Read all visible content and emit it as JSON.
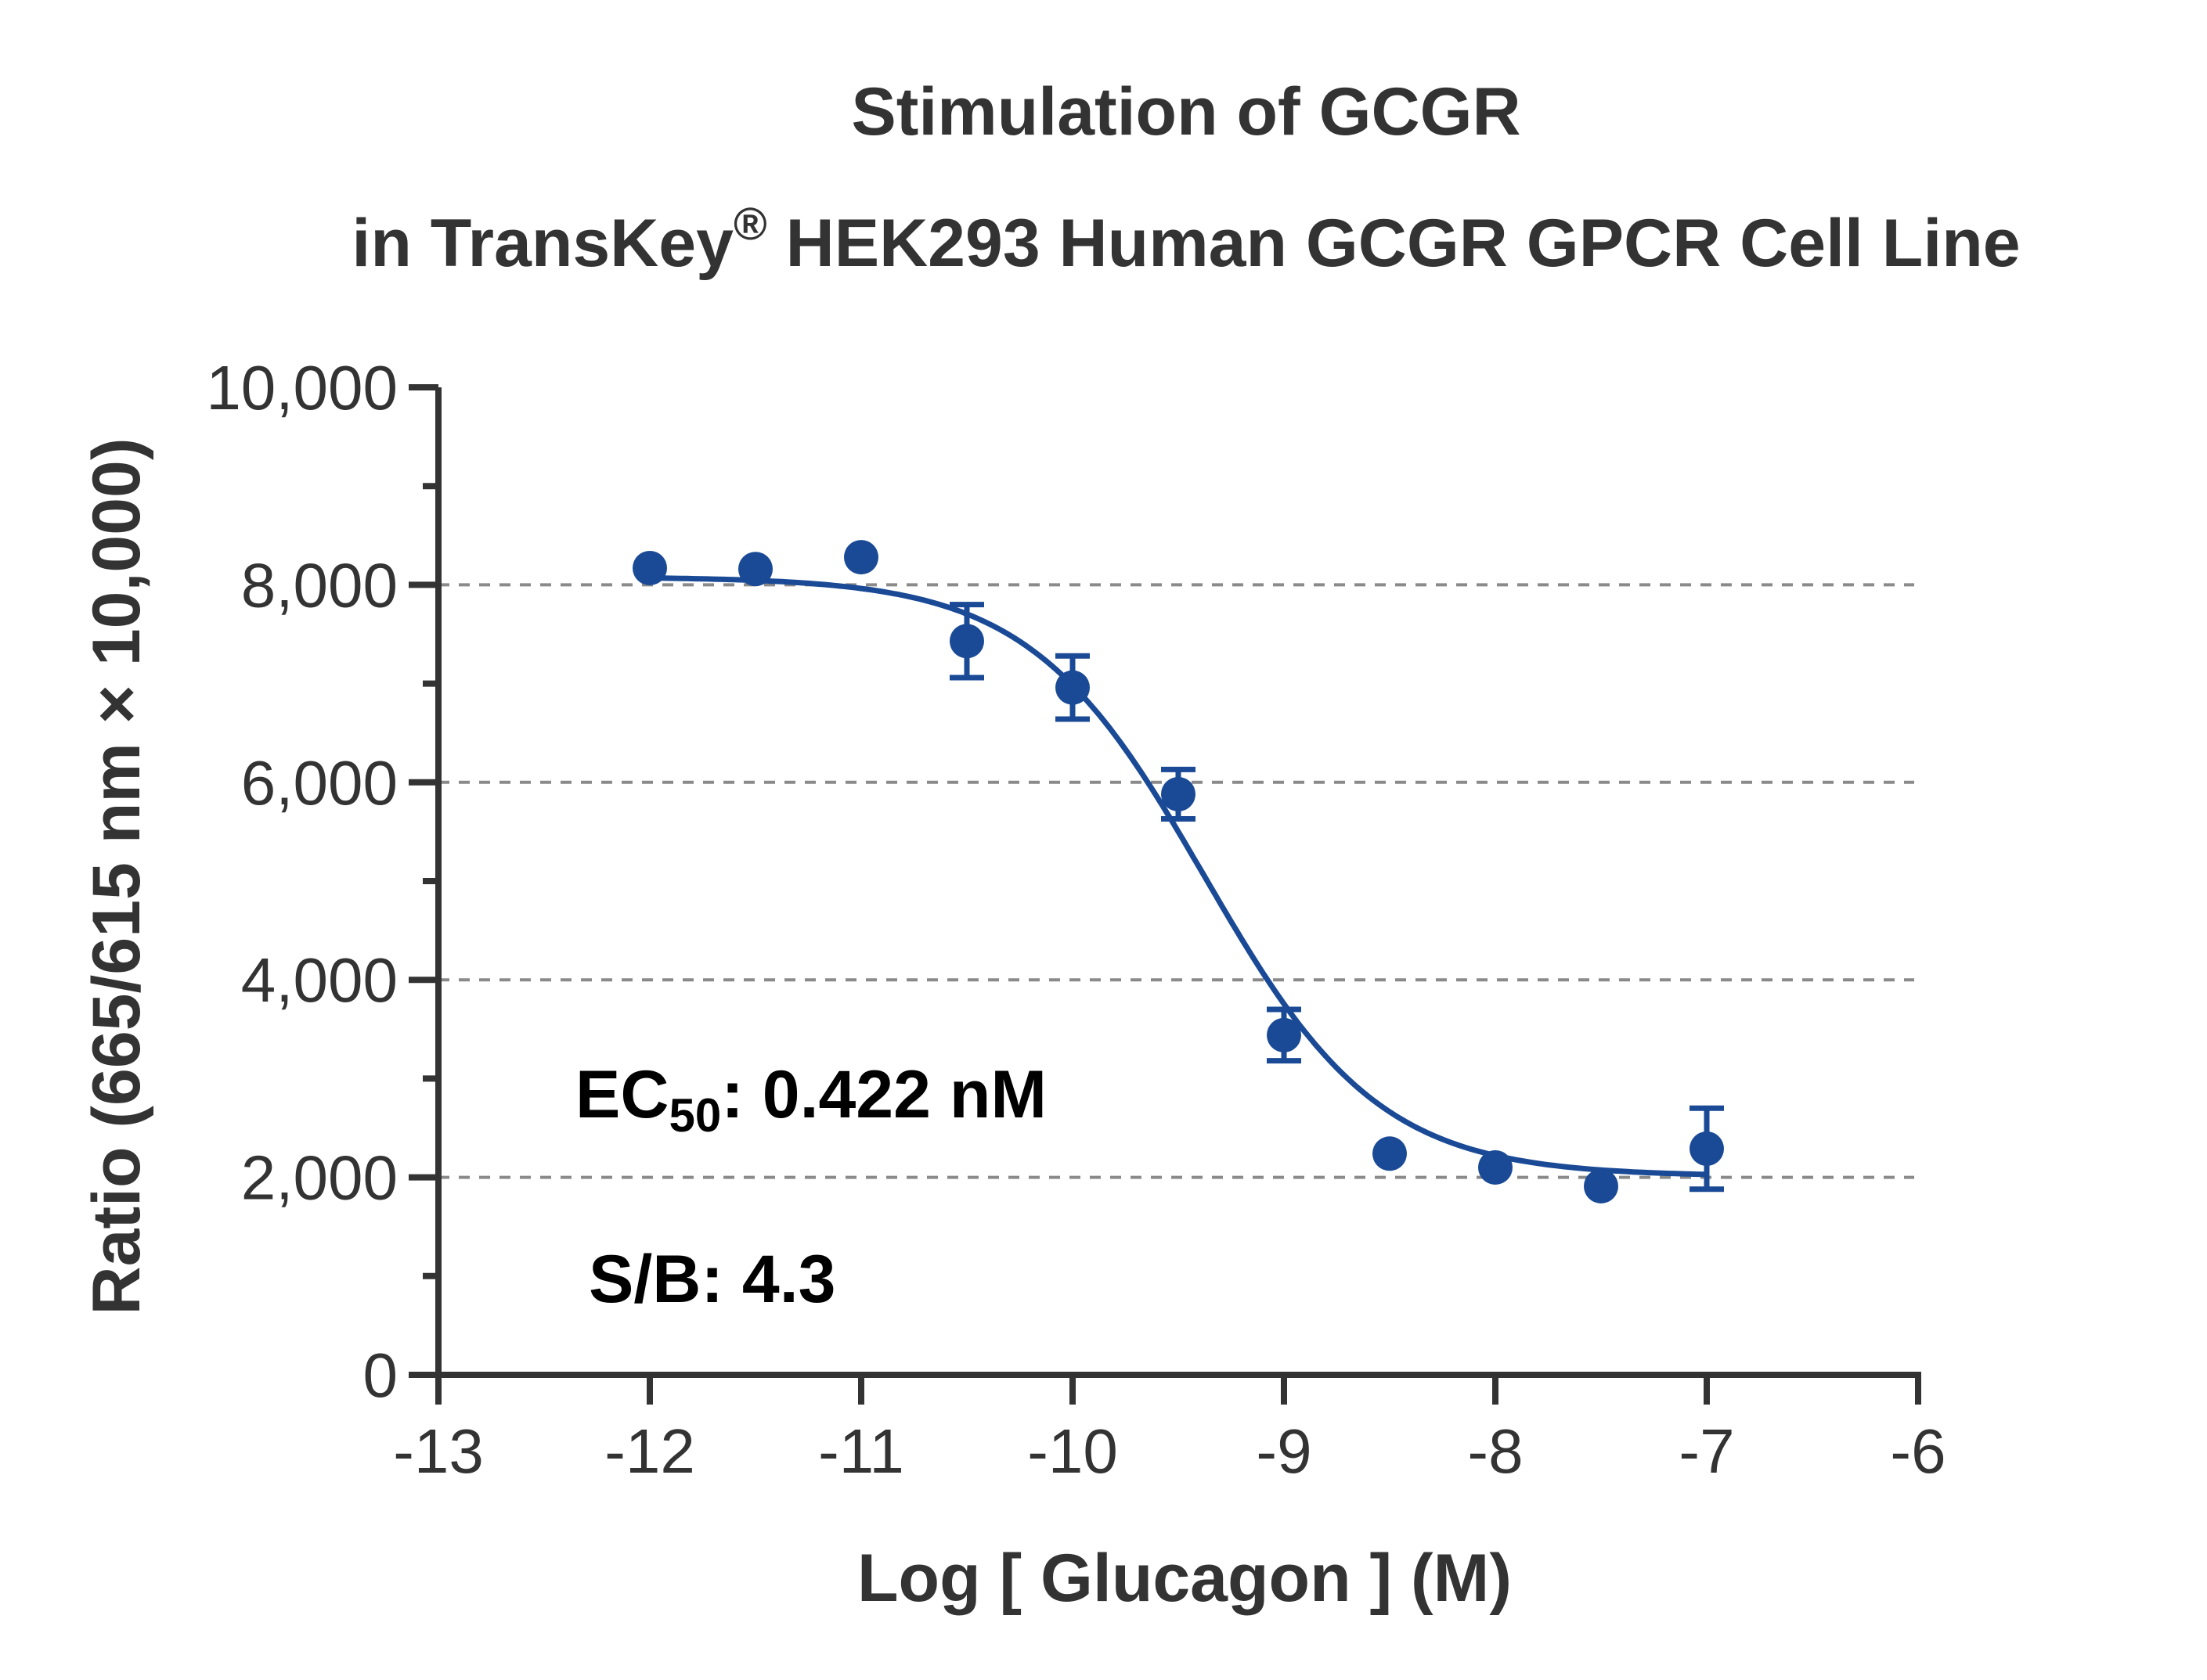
{
  "chart_data": {
    "type": "scatter",
    "title_line1": "Stimulation of  GCGR",
    "title_line2_prefix": "in TransKey",
    "title_line2_reg": "®",
    "title_line2_suffix": " HEK293 Human GCGR GPCR Cell Line",
    "xlabel": "Log [ Glucagon ]  (M)",
    "ylabel": "Ratio (665/615 nm × 10,000)",
    "xlim": [
      -13,
      -6
    ],
    "ylim": [
      0,
      10000
    ],
    "x_ticks": [
      -13,
      -12,
      -11,
      -10,
      -9,
      -8,
      -7,
      -6
    ],
    "x_tick_labels": [
      "-13",
      "-12",
      "-11",
      "-10",
      "-9",
      "-8",
      "-7",
      "-6"
    ],
    "y_ticks": [
      0,
      2000,
      4000,
      6000,
      8000,
      10000
    ],
    "y_tick_labels": [
      "0",
      "2,000",
      "4,000",
      "6,000",
      "8,000",
      "10,000"
    ],
    "y_gridlines": [
      2000,
      4000,
      6000,
      8000
    ],
    "grid": "horizontal dashed",
    "series": [
      {
        "x": [
          -12,
          -11.5,
          -11,
          -10.5,
          -10,
          -9.5,
          -9,
          -8.5,
          -8,
          -7.5,
          -7
        ],
        "y": [
          8170,
          8160,
          8280,
          7430,
          6960,
          5880,
          3440,
          2240,
          2100,
          1910,
          2290
        ],
        "error": [
          0,
          0,
          0,
          370,
          320,
          250,
          260,
          0,
          0,
          0,
          410
        ],
        "color": "#1a4a96"
      }
    ],
    "fit_curve": {
      "model": "4PL",
      "top": 8080,
      "bottom": 2010,
      "log_ec50": -9.375,
      "hill_slope": -1.05,
      "x_range": [
        -12,
        -7
      ],
      "color": "#1a4a96"
    },
    "annotations": {
      "ec50_prefix": "EC",
      "ec50_sub": "50",
      "ec50_suffix": ": 0.422 nM",
      "sb": "S/B: 4.3"
    }
  }
}
